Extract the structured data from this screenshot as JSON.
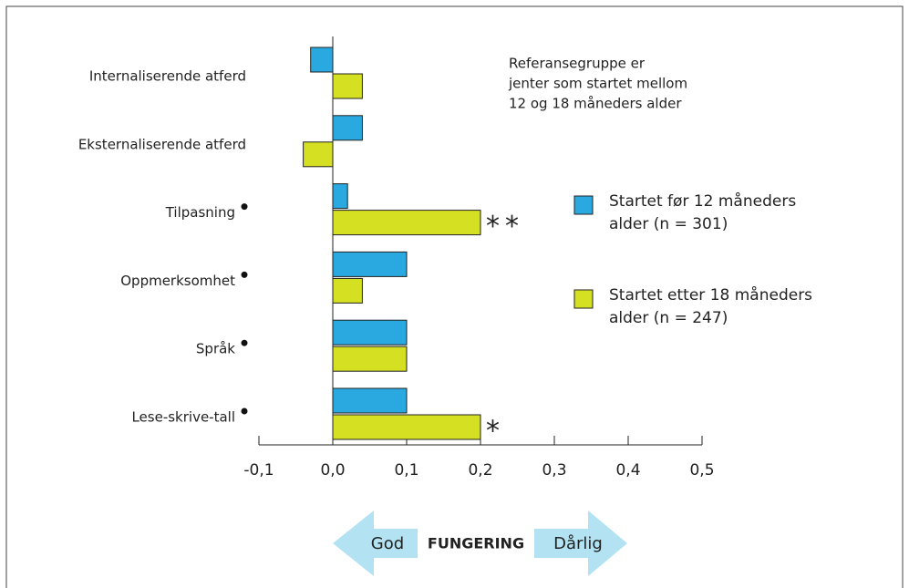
{
  "chart_data": {
    "type": "bar",
    "orientation": "horizontal",
    "categories": [
      "Internaliserende atferd",
      "Eksternaliserende atferd",
      "Tilpasning",
      "Oppmerksomhet",
      "Språk",
      "Lese-skrive-tall"
    ],
    "marked_categories": [
      2,
      3,
      4,
      5
    ],
    "series": [
      {
        "name": "Startet før 12 måneders alder (n = 301)",
        "color": "#29a9e0",
        "values": [
          -0.03,
          0.04,
          0.02,
          0.1,
          0.1,
          0.1
        ]
      },
      {
        "name": "Startet etter 18 måneders alder (n = 247)",
        "color": "#d4e021",
        "values": [
          0.04,
          -0.04,
          0.2,
          0.04,
          0.1,
          0.2
        ]
      }
    ],
    "xlim": [
      -0.1,
      0.5
    ],
    "xticks": [
      {
        "value": -0.1,
        "label": "-0,1"
      },
      {
        "value": 0.0,
        "label": "0,0"
      },
      {
        "value": 0.1,
        "label": "0,1"
      },
      {
        "value": 0.2,
        "label": "0,2"
      },
      {
        "value": 0.3,
        "label": "0,3"
      },
      {
        "value": 0.4,
        "label": "0,4"
      },
      {
        "value": 0.5,
        "label": "0,5"
      }
    ],
    "significance": [
      {
        "series": 1,
        "category": 2,
        "label": "**"
      },
      {
        "series": 1,
        "category": 5,
        "label": "*"
      }
    ],
    "note": [
      "Referansegruppe er",
      "jenter som startet mellom",
      "12 og 18 måneders alder"
    ],
    "arrow": {
      "left": "God",
      "center": "FUNGERING",
      "right": "Dårlig"
    }
  }
}
